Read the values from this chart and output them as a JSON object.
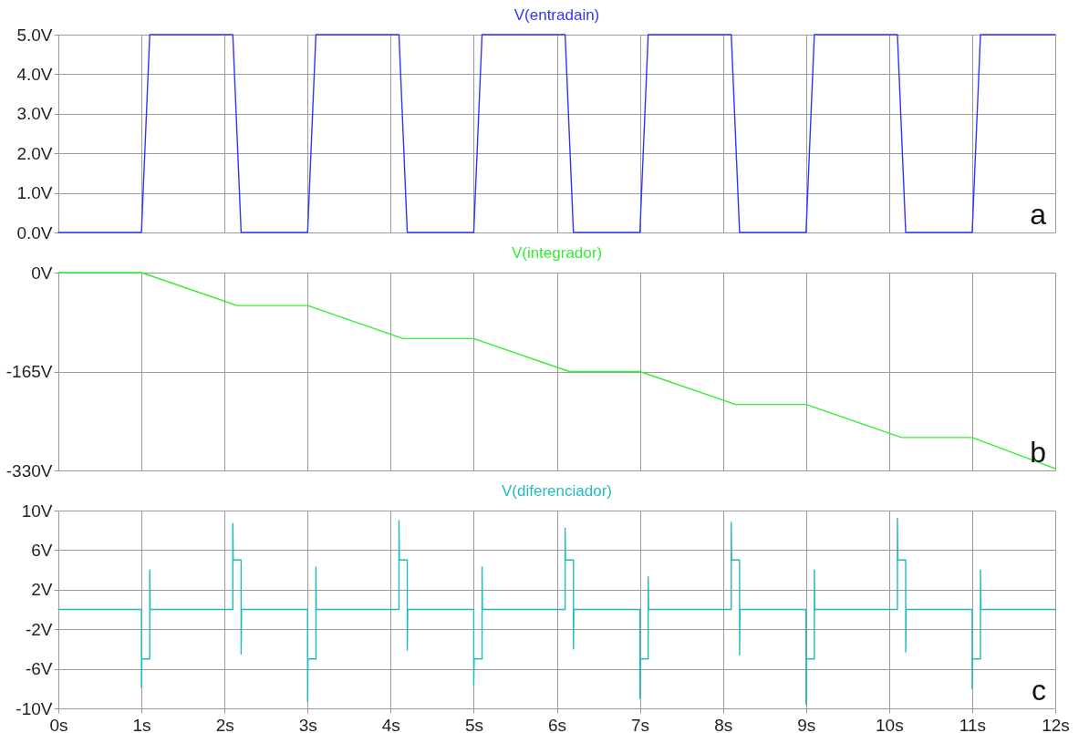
{
  "chart_data": [
    {
      "type": "line",
      "title": "V(entradain)",
      "annotations": [
        "a"
      ],
      "grid": true,
      "tick_labels": "y",
      "xlim": [
        0,
        12
      ],
      "ylim": [
        0,
        5
      ],
      "yticks": [
        {
          "value": 0,
          "label": "0.0V"
        },
        {
          "value": 1,
          "label": "1.0V"
        },
        {
          "value": 2,
          "label": "2.0V"
        },
        {
          "value": 3,
          "label": "3.0V"
        },
        {
          "value": 4,
          "label": "4.0V"
        },
        {
          "value": 5,
          "label": "5.0V"
        }
      ],
      "series": [
        {
          "color": "#3333ff",
          "x": [
            0,
            1,
            1.1,
            2.1,
            2.2,
            3,
            3.1,
            4.1,
            4.2,
            5,
            5.1,
            6.1,
            6.2,
            7,
            7.1,
            8.1,
            8.2,
            9,
            9.1,
            10.1,
            10.2,
            11,
            11.1,
            12
          ],
          "values": [
            0,
            0,
            5,
            5,
            0,
            0,
            5,
            5,
            0,
            0,
            5,
            5,
            0,
            0,
            5,
            5,
            0,
            0,
            5,
            5,
            0,
            0,
            5,
            5
          ]
        }
      ]
    },
    {
      "type": "line",
      "title": "V(integrador)",
      "annotations": [
        "b"
      ],
      "grid": true,
      "tick_labels": "y",
      "xlim": [
        0,
        12
      ],
      "ylim": [
        -330,
        0
      ],
      "yticks": [
        {
          "value": 0,
          "label": "0V"
        },
        {
          "value": -165,
          "label": "-165V"
        },
        {
          "value": -330,
          "label": "-330V"
        }
      ],
      "series": [
        {
          "color": "#33ee33",
          "x": [
            0,
            1,
            2.15,
            3,
            4.15,
            5,
            6.15,
            7,
            8.15,
            9,
            10.15,
            11,
            12
          ],
          "values": [
            0,
            0,
            -55,
            -55,
            -110,
            -110,
            -165,
            -165,
            -220,
            -220,
            -275,
            -275,
            -327
          ]
        }
      ]
    },
    {
      "type": "line",
      "title": "V(diferenciador)",
      "annotations": [
        "c"
      ],
      "grid": true,
      "xlim": [
        0,
        12
      ],
      "xticks": [
        {
          "value": 0,
          "label": "0s"
        },
        {
          "value": 1,
          "label": "1s"
        },
        {
          "value": 2,
          "label": "2s"
        },
        {
          "value": 3,
          "label": "3s"
        },
        {
          "value": 4,
          "label": "4s"
        },
        {
          "value": 5,
          "label": "5s"
        },
        {
          "value": 6,
          "label": "6s"
        },
        {
          "value": 7,
          "label": "7s"
        },
        {
          "value": 8,
          "label": "8s"
        },
        {
          "value": 9,
          "label": "9s"
        },
        {
          "value": 10,
          "label": "10s"
        },
        {
          "value": 11,
          "label": "11s"
        },
        {
          "value": 12,
          "label": "12s"
        }
      ],
      "ylim": [
        -10,
        10
      ],
      "yticks": [
        {
          "value": 10,
          "label": "10V"
        },
        {
          "value": 6,
          "label": "6V"
        },
        {
          "value": 2,
          "label": "2V"
        },
        {
          "value": -2,
          "label": "-2V"
        },
        {
          "value": -6,
          "label": "-6V"
        },
        {
          "value": -10,
          "label": "-10V"
        }
      ],
      "series": [
        {
          "color": "#22bbbb",
          "x": [
            0,
            1,
            1,
            1.005,
            1.1,
            1.1,
            1.105,
            2.1,
            2.1,
            2.105,
            2.2,
            2.2,
            2.205,
            3,
            3,
            3.005,
            3.1,
            3.1,
            3.105,
            4.1,
            4.1,
            4.105,
            4.2,
            4.2,
            4.205,
            5,
            5,
            5.005,
            5.1,
            5.1,
            5.105,
            6.1,
            6.1,
            6.105,
            6.2,
            6.2,
            6.205,
            7,
            7,
            7.005,
            7.1,
            7.1,
            7.105,
            8.1,
            8.1,
            8.105,
            8.2,
            8.2,
            8.205,
            9,
            9,
            9.005,
            9.1,
            9.1,
            9.105,
            10.1,
            10.1,
            10.105,
            10.2,
            10.2,
            10.205,
            11,
            11,
            11.005,
            11.1,
            11.1,
            11.105,
            12
          ],
          "values": [
            0,
            0,
            -7.9,
            -5,
            -5,
            4.0,
            0,
            0,
            8.7,
            5,
            5,
            -4.5,
            0,
            0,
            -9.3,
            -5,
            -5,
            4.3,
            0,
            0,
            9.0,
            5,
            5,
            -4.1,
            0,
            0,
            -7.7,
            -5,
            -5,
            4.3,
            0,
            0,
            8.2,
            5,
            5,
            -4.0,
            0,
            0,
            -9.0,
            -5,
            -5,
            3.3,
            0,
            0,
            8.8,
            5,
            5,
            -4.6,
            0,
            0,
            -9.6,
            -5,
            -5,
            4.0,
            0,
            0,
            9.2,
            5,
            5,
            -4.3,
            0,
            0,
            -8.0,
            -5,
            -5,
            4.0,
            0,
            0
          ]
        }
      ]
    }
  ]
}
